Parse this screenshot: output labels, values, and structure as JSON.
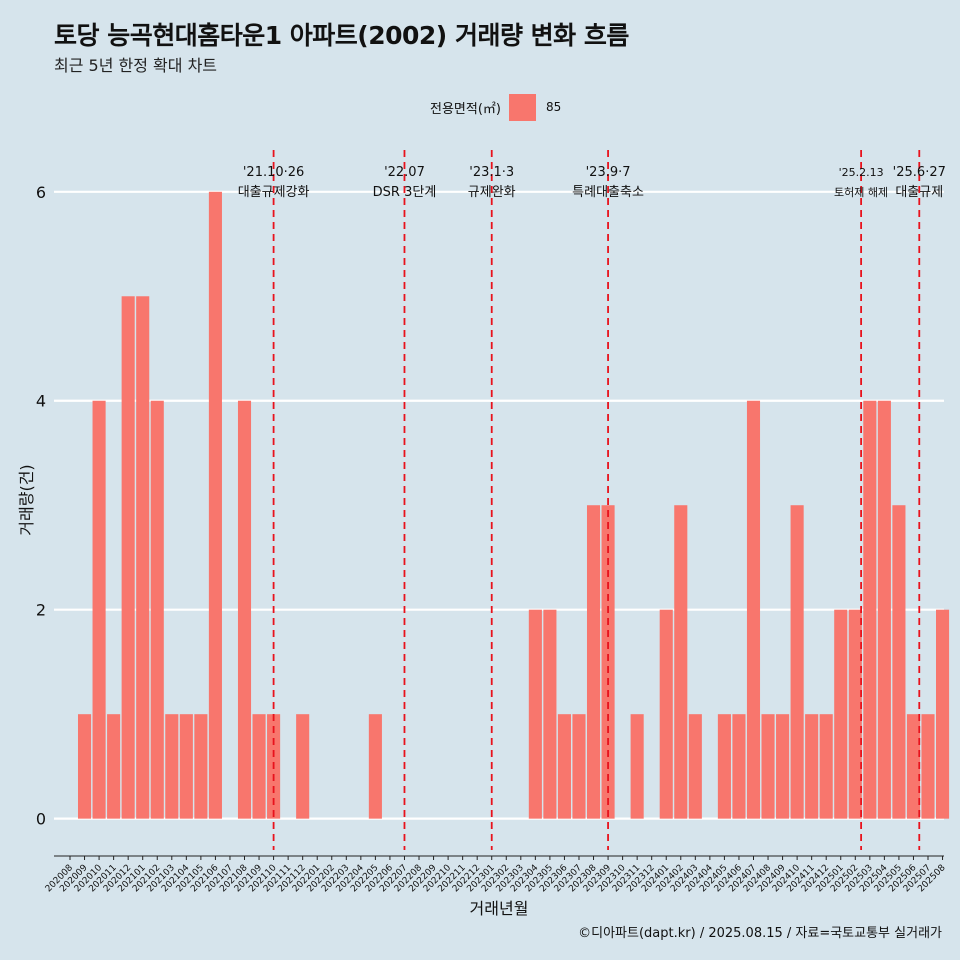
{
  "title": "토당 능곡현대홈타운1 아파트(2002) 거래량 변화 흐름",
  "subtitle": "최근 5년 한정 확대 차트",
  "legend": {
    "label": "전용면적(㎡)",
    "item": "85"
  },
  "caption": "©디아파트(dapt.kr) / 2025.08.15 / 자료=국토교통부 실거래가",
  "colors": {
    "bar": "#f8766d",
    "event": "#e8121c",
    "background": "#d6e4ec",
    "grid": "#ffffff"
  },
  "chart_data": {
    "type": "bar",
    "xlabel": "거래년월",
    "ylabel": "거래량(건)",
    "ylim": [
      -0.3,
      6.4
    ],
    "yticks": [
      0,
      2,
      4,
      6
    ],
    "grid": "horizontal",
    "legend_position": "top",
    "categories": [
      "202008",
      "202009",
      "202010",
      "202011",
      "202012",
      "202101",
      "202102",
      "202103",
      "202104",
      "202105",
      "202106",
      "202107",
      "202108",
      "202109",
      "202110",
      "202111",
      "202112",
      "202201",
      "202202",
      "202203",
      "202204",
      "202205",
      "202206",
      "202207",
      "202208",
      "202209",
      "202210",
      "202211",
      "202212",
      "202301",
      "202302",
      "202303",
      "202304",
      "202305",
      "202306",
      "202307",
      "202308",
      "202309",
      "202310",
      "202311",
      "202312",
      "202401",
      "202402",
      "202403",
      "202404",
      "202405",
      "202406",
      "202407",
      "202408",
      "202409",
      "202410",
      "202411",
      "202412",
      "202501",
      "202502",
      "202503",
      "202504",
      "202505",
      "202506",
      "202507",
      "202508"
    ],
    "series": [
      {
        "name": "85",
        "values": [
          0,
          1,
          4,
          1,
          5,
          5,
          4,
          1,
          1,
          1,
          6,
          0,
          4,
          1,
          1,
          0,
          1,
          0,
          0,
          0,
          0,
          1,
          0,
          0,
          0,
          0,
          0,
          0,
          0,
          0,
          0,
          0,
          2,
          2,
          1,
          1,
          3,
          3,
          0,
          1,
          0,
          2,
          3,
          1,
          0,
          1,
          1,
          4,
          1,
          1,
          3,
          1,
          1,
          2,
          2,
          4,
          4,
          3,
          1,
          1,
          2
        ]
      }
    ],
    "events": [
      {
        "x": 14.0,
        "date": "'21.10·26",
        "label": "대출규제강화"
      },
      {
        "x": 23.0,
        "date": "'22.07",
        "label": "DSR 3단계"
      },
      {
        "x": 29.0,
        "date": "'23.1·3",
        "label": "규제완화"
      },
      {
        "x": 37.0,
        "date": "'23.9·7",
        "label": "특례대출축소"
      },
      {
        "x": 54.4,
        "date": "'25.2.13",
        "label": "토허제 해제"
      },
      {
        "x": 58.4,
        "date": "'25.6·27",
        "label": "대출규제"
      }
    ]
  }
}
